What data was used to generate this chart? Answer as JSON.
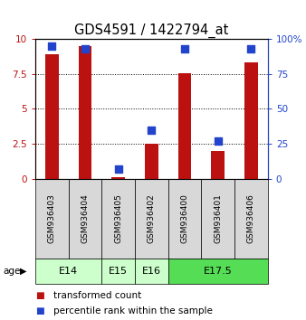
{
  "title": "GDS4591 / 1422794_at",
  "samples": [
    "GSM936403",
    "GSM936404",
    "GSM936405",
    "GSM936402",
    "GSM936400",
    "GSM936401",
    "GSM936406"
  ],
  "transformed_count": [
    8.9,
    9.5,
    0.15,
    2.5,
    7.55,
    2.0,
    8.3
  ],
  "percentile_rank": [
    95,
    93,
    7,
    35,
    93,
    27,
    93
  ],
  "age_groups": [
    {
      "label": "E14",
      "start": 0,
      "end": 2,
      "color": "#ccffcc"
    },
    {
      "label": "E15",
      "start": 2,
      "end": 3,
      "color": "#ccffcc"
    },
    {
      "label": "E16",
      "start": 3,
      "end": 4,
      "color": "#ccffcc"
    },
    {
      "label": "E17.5",
      "start": 4,
      "end": 7,
      "color": "#55dd55"
    }
  ],
  "ylim_left": [
    0,
    10
  ],
  "ylim_right": [
    0,
    100
  ],
  "yticks_left": [
    0,
    2.5,
    5,
    7.5,
    10
  ],
  "yticks_right": [
    0,
    25,
    50,
    75,
    100
  ],
  "bar_color": "#bb1111",
  "dot_color": "#2244cc",
  "bar_width": 0.4,
  "dot_size": 28,
  "grid_color": "black",
  "grid_style": "dotted",
  "sample_box_color": "#d8d8d8",
  "age_label_fontsize": 8,
  "sample_fontsize": 6.5,
  "tick_fontsize": 7.5,
  "title_fontsize": 10.5,
  "legend_fontsize": 7.5
}
